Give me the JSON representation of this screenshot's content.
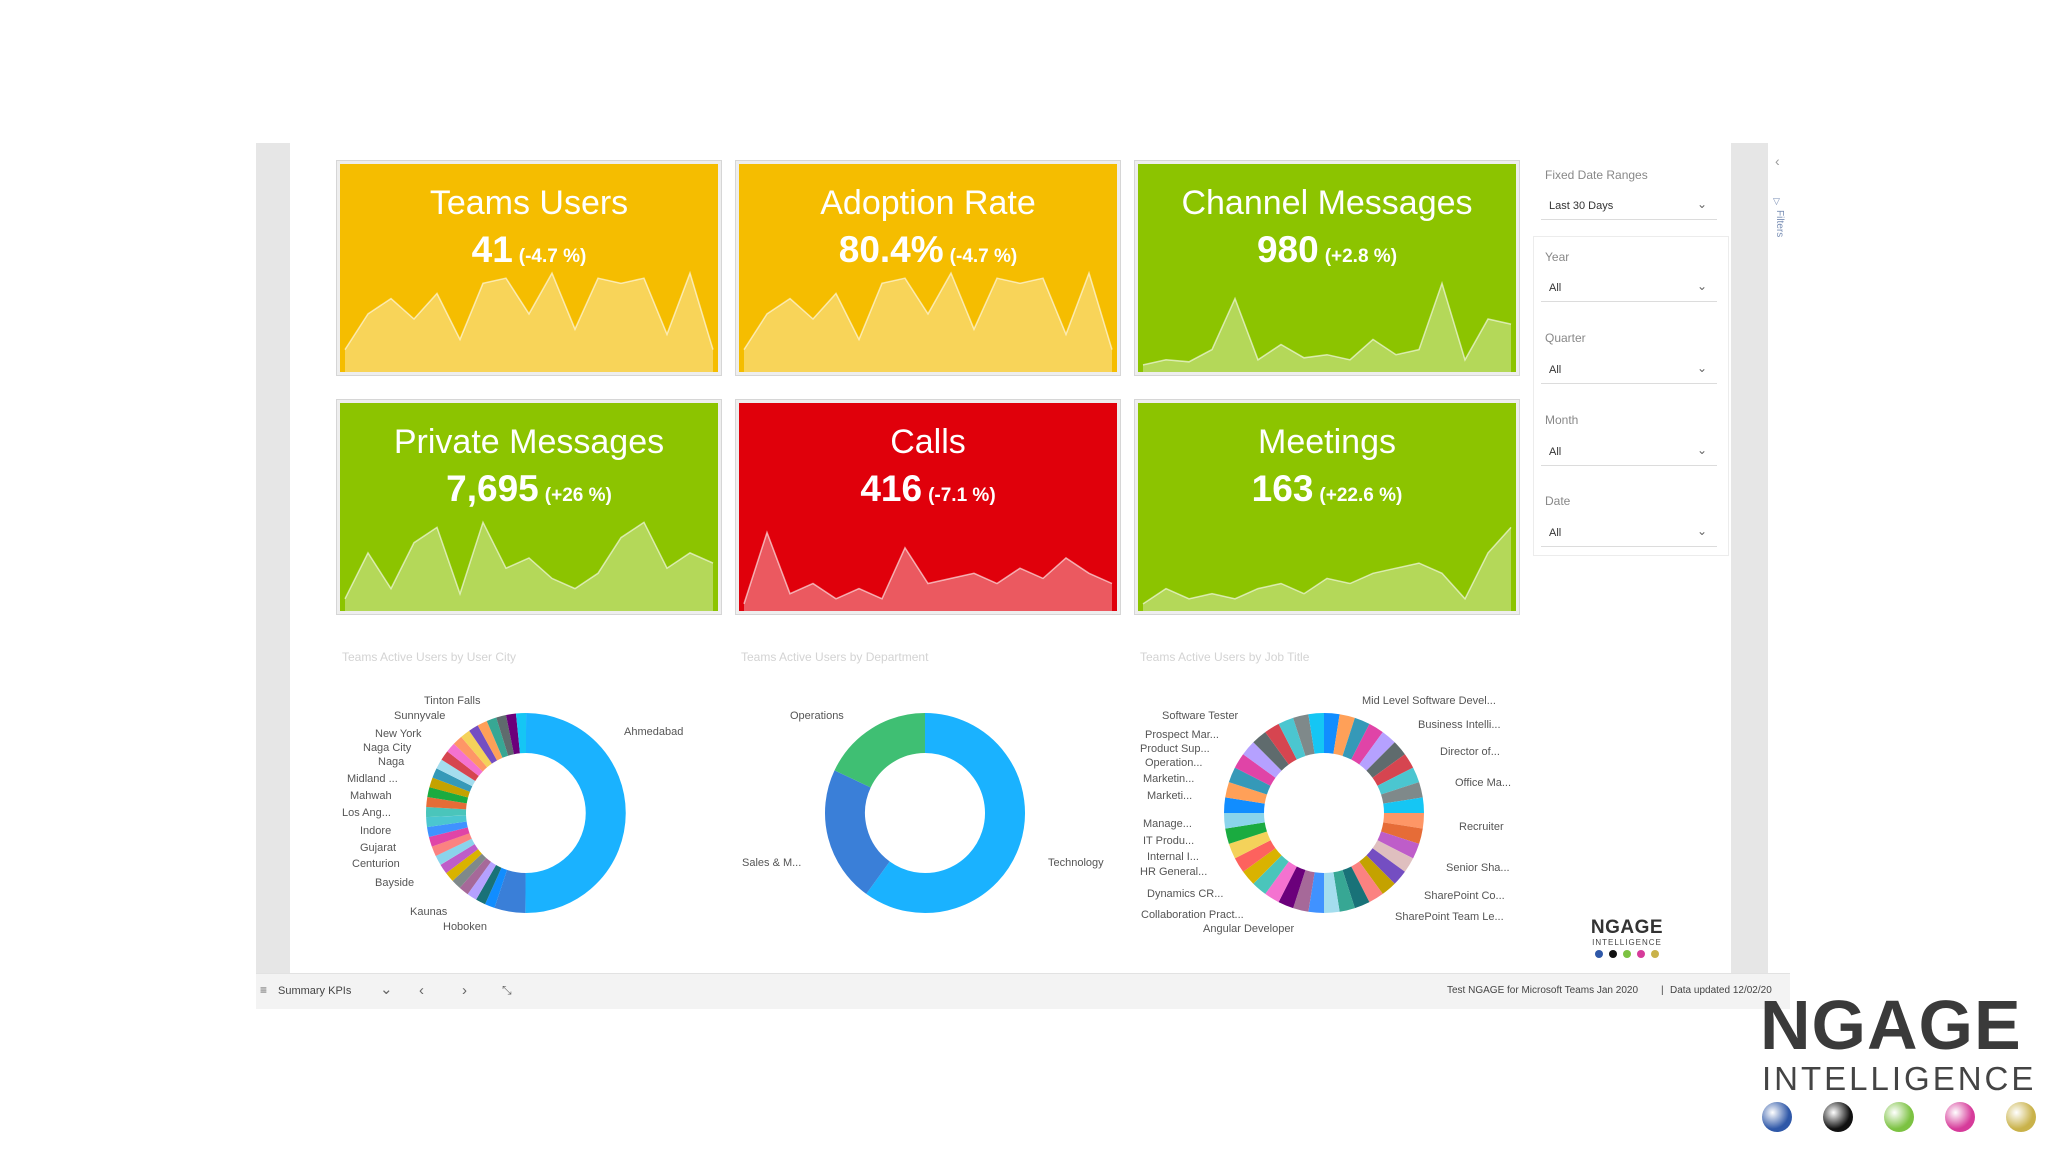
{
  "kpis": [
    {
      "title": "Teams Users",
      "value": "41",
      "change": "(-4.7 %)",
      "color": "#f5bd00",
      "spark": [
        0.2,
        0.55,
        0.7,
        0.5,
        0.75,
        0.3,
        0.85,
        0.9,
        0.55,
        0.95,
        0.4,
        0.9,
        0.85,
        0.9,
        0.35,
        0.95,
        0.2
      ]
    },
    {
      "title": "Adoption Rate",
      "value": "80.4%",
      "change": "(-4.7 %)",
      "color": "#f5bd00",
      "spark": [
        0.2,
        0.55,
        0.7,
        0.5,
        0.75,
        0.3,
        0.85,
        0.9,
        0.55,
        0.95,
        0.4,
        0.9,
        0.85,
        0.9,
        0.35,
        0.95,
        0.2
      ]
    },
    {
      "title": "Channel Messages",
      "value": "980",
      "change": "(+2.8 %)",
      "color": "#8cc400",
      "spark": [
        0.05,
        0.1,
        0.08,
        0.2,
        0.7,
        0.1,
        0.25,
        0.12,
        0.15,
        0.1,
        0.3,
        0.15,
        0.2,
        0.85,
        0.1,
        0.5,
        0.45
      ]
    },
    {
      "title": "Private Messages",
      "value": "7,695",
      "change": "(+26 %)",
      "color": "#8cc400",
      "spark": [
        0.1,
        0.55,
        0.2,
        0.65,
        0.8,
        0.15,
        0.85,
        0.4,
        0.5,
        0.3,
        0.2,
        0.35,
        0.7,
        0.85,
        0.4,
        0.55,
        0.45
      ]
    },
    {
      "title": "Calls",
      "value": "416",
      "change": "(-7.1 %)",
      "color": "#e0000b",
      "spark": [
        0.05,
        0.75,
        0.15,
        0.25,
        0.1,
        0.2,
        0.1,
        0.6,
        0.25,
        0.3,
        0.35,
        0.25,
        0.4,
        0.3,
        0.5,
        0.35,
        0.25
      ]
    },
    {
      "title": "Meetings",
      "value": "163",
      "change": "(+22.6 %)",
      "color": "#8cc400",
      "spark": [
        0.05,
        0.2,
        0.1,
        0.15,
        0.1,
        0.2,
        0.25,
        0.15,
        0.3,
        0.25,
        0.35,
        0.4,
        0.45,
        0.35,
        0.1,
        0.55,
        0.8
      ]
    }
  ],
  "charts": {
    "city": {
      "title": "Teams Active Users by User City",
      "labels": [
        "Tinton Falls",
        "Sunnyvale",
        "New York",
        "Naga City",
        "Naga",
        "Midland ...",
        "Mahwah",
        "Los Ang...",
        "Indore",
        "Gujarat",
        "Centurion",
        "Bayside",
        "Kaunas",
        "Hoboken",
        "Ahmedabad"
      ]
    },
    "department": {
      "title": "Teams Active Users by Department",
      "labels": [
        "Operations",
        "Sales & M...",
        "Technology"
      ]
    },
    "jobtitle": {
      "title": "Teams Active Users by Job Title",
      "labels": [
        "Software Tester",
        "Prospect Mar...",
        "Product Sup...",
        "Operation...",
        "Marketin...",
        "Marketi...",
        "Manage...",
        "IT Produ...",
        "Internal I...",
        "HR General...",
        "Dynamics CR...",
        "Collaboration Pract...",
        "Angular Developer",
        "Mid Level Software Devel...",
        "Business Intelli...",
        "Director of...",
        "Office Ma...",
        "Recruiter",
        "Senior Sha...",
        "SharePoint Co...",
        "SharePoint Team Le..."
      ]
    }
  },
  "slicers": {
    "fixed_label": "Fixed Date Ranges",
    "fixed_value": "Last 30 Days",
    "items": [
      {
        "label": "Year",
        "value": "All"
      },
      {
        "label": "Quarter",
        "value": "All"
      },
      {
        "label": "Month",
        "value": "All"
      },
      {
        "label": "Date",
        "value": "All"
      }
    ]
  },
  "side": {
    "filters": "Filters"
  },
  "brand": {
    "name": "NGAGE",
    "tagline": "INTELLIGENCE",
    "dot_colors": [
      "#2f58a8",
      "#111111",
      "#7cc242",
      "#d63b9a",
      "#c9b24a"
    ]
  },
  "bottombar": {
    "page": "Summary KPIs",
    "report": "Test NGAGE for Microsoft Teams Jan 2020",
    "separator": "|",
    "updated": "Data updated 12/02/20"
  }
}
